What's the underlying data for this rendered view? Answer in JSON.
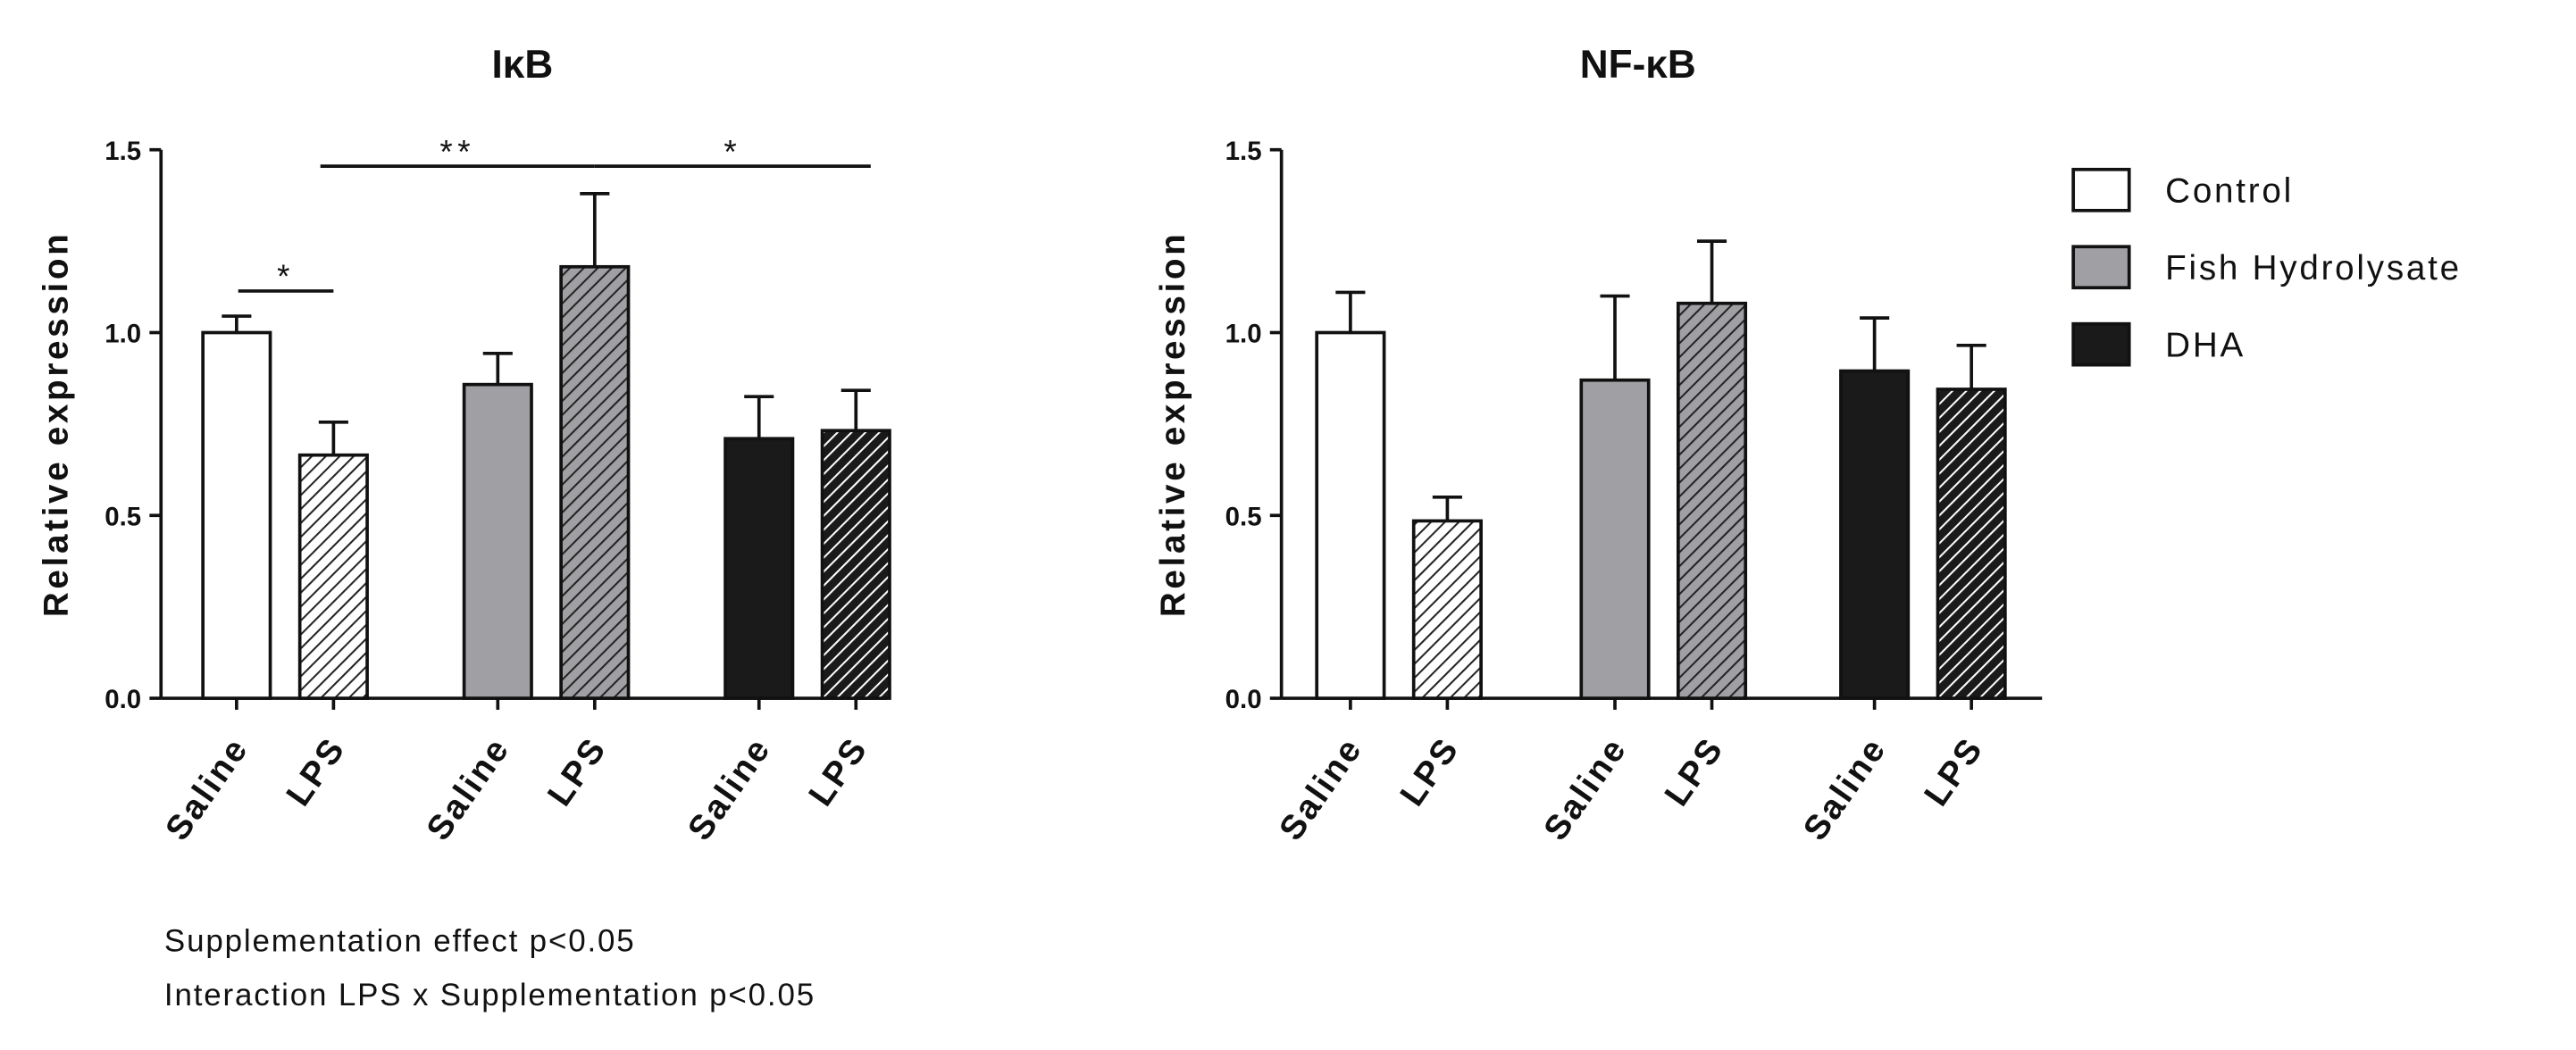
{
  "chart_data": [
    {
      "type": "bar",
      "title": "IκB",
      "y_label": "Relative expression",
      "categories": [
        "Saline",
        "LPS"
      ],
      "hatch": [
        false,
        true
      ],
      "ylim": [
        0,
        1.5
      ],
      "yticks": [
        {
          "value": 0,
          "label": "0.0"
        },
        {
          "value": 0.5,
          "label": "0.5"
        },
        {
          "value": 1,
          "label": "1.0"
        },
        {
          "value": 1.5,
          "label": "1.5"
        }
      ],
      "series": [
        {
          "color": "#ffffff",
          "values": [
            1.0,
            0.665
          ],
          "errors": [
            0.045,
            0.09
          ]
        },
        {
          "color": "#a0a0a4",
          "values": [
            0.858,
            1.18
          ],
          "errors": [
            0.085,
            0.2
          ]
        },
        {
          "color": "#1a1a1a",
          "values": [
            0.71,
            0.732
          ],
          "errors": [
            0.115,
            0.11
          ]
        }
      ],
      "annotations": [
        "*",
        "**",
        "*"
      ],
      "notes": [
        "Supplementation effect p<0.05",
        "Interaction LPS x Supplementation p<0.05"
      ]
    },
    {
      "type": "bar",
      "title": "NF-κB",
      "y_label": "Relative expression",
      "categories": [
        "Saline",
        "LPS"
      ],
      "hatch": [
        false,
        true
      ],
      "ylim": [
        0,
        1.5
      ],
      "yticks": [
        {
          "value": 0,
          "label": "0.0"
        },
        {
          "value": 0.5,
          "label": "0.5"
        },
        {
          "value": 1,
          "label": "1.0"
        },
        {
          "value": 1.5,
          "label": "1.5"
        }
      ],
      "legend": "right",
      "series": [
        {
          "name": "Control",
          "color": "#ffffff",
          "values": [
            1.0,
            0.485
          ],
          "errors": [
            0.11,
            0.065
          ]
        },
        {
          "name": "Fish Hydrolysate",
          "color": "#a0a0a4",
          "values": [
            0.87,
            1.08
          ],
          "errors": [
            0.23,
            0.17
          ]
        },
        {
          "name": "DHA",
          "color": "#1a1a1a",
          "values": [
            0.895,
            0.845
          ],
          "errors": [
            0.145,
            0.12
          ]
        }
      ]
    }
  ]
}
